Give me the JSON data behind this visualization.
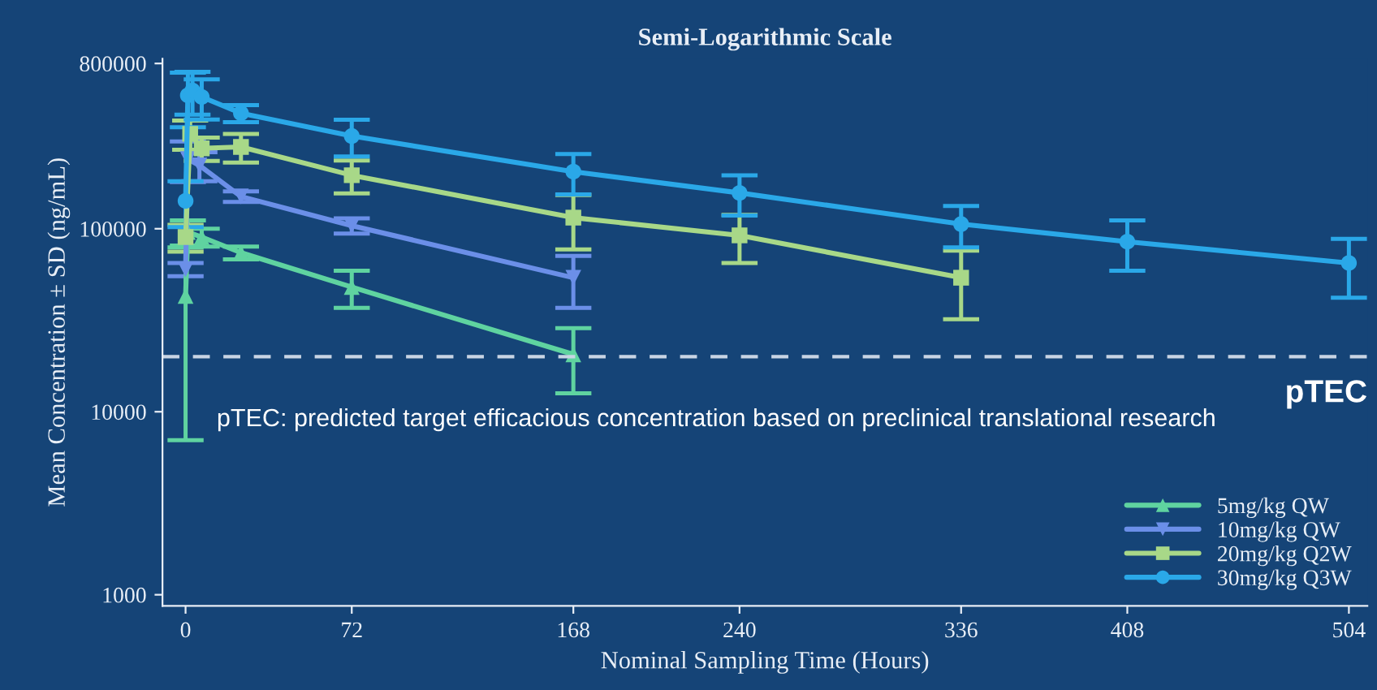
{
  "chart_data": {
    "type": "line",
    "title": "Semi-Logarithmic Scale",
    "xlabel": "Nominal Sampling Time (Hours)",
    "ylabel": "Mean Concentration ± SD (ng/mL)",
    "log": "y",
    "xlim": [
      -10,
      512
    ],
    "ylim": [
      870,
      850000
    ],
    "xticks": [
      0,
      72,
      168,
      240,
      336,
      408,
      504
    ],
    "yticks": [
      1000,
      10000,
      100000,
      800000
    ],
    "legend": "bottom right",
    "grid": false,
    "line_style": "solid",
    "series": [
      {
        "name": "5mg/kg QW",
        "color": "#5fd3a0",
        "marker": "triangle",
        "x": [
          0,
          1,
          7,
          24,
          72,
          168
        ],
        "values": [
          43000,
          96000,
          90000,
          74000,
          48000,
          20600
        ],
        "errors": [
          36000,
          15000,
          10000,
          6000,
          11000,
          8000
        ]
      },
      {
        "name": "10mg/kg QW",
        "color": "#6b8fe8",
        "marker": "triangle_down",
        "x": [
          0,
          1,
          6,
          24,
          72,
          168
        ],
        "values": [
          60000,
          240000,
          222000,
          150000,
          104000,
          54000
        ],
        "errors": [
          5000,
          60000,
          40000,
          10000,
          10000,
          17000
        ]
      },
      {
        "name": "20mg/kg Q2W",
        "color": "#a8d888",
        "marker": "square",
        "x": [
          0,
          2,
          7,
          24,
          72,
          168,
          240,
          336
        ],
        "values": [
          90000,
          330000,
          275000,
          280000,
          196000,
          115000,
          92000,
          54000
        ],
        "errors": [
          15000,
          60000,
          40000,
          50000,
          40000,
          38000,
          27000,
          22000
        ]
      },
      {
        "name": "30mg/kg Q3W",
        "color": "#2aa8e8",
        "marker": "circle",
        "x": [
          0,
          1,
          3,
          7,
          24,
          72,
          168,
          240,
          336,
          408,
          504
        ],
        "values": [
          142000,
          536000,
          570000,
          525000,
          428000,
          321000,
          205000,
          157000,
          106000,
          85000,
          65000
        ],
        "errors": [
          40000,
          177000,
          150000,
          130000,
          46000,
          73000,
          51000,
          39000,
          27000,
          26000,
          23000
        ]
      }
    ],
    "ref_lines": [
      {
        "axis": "y",
        "value": 20000,
        "label": "pTEC",
        "color": "#c8d4e4",
        "line_style": "dashed"
      }
    ],
    "annotations": [
      "pTEC: predicted target efficacious concentration based on preclinical translational research"
    ]
  }
}
